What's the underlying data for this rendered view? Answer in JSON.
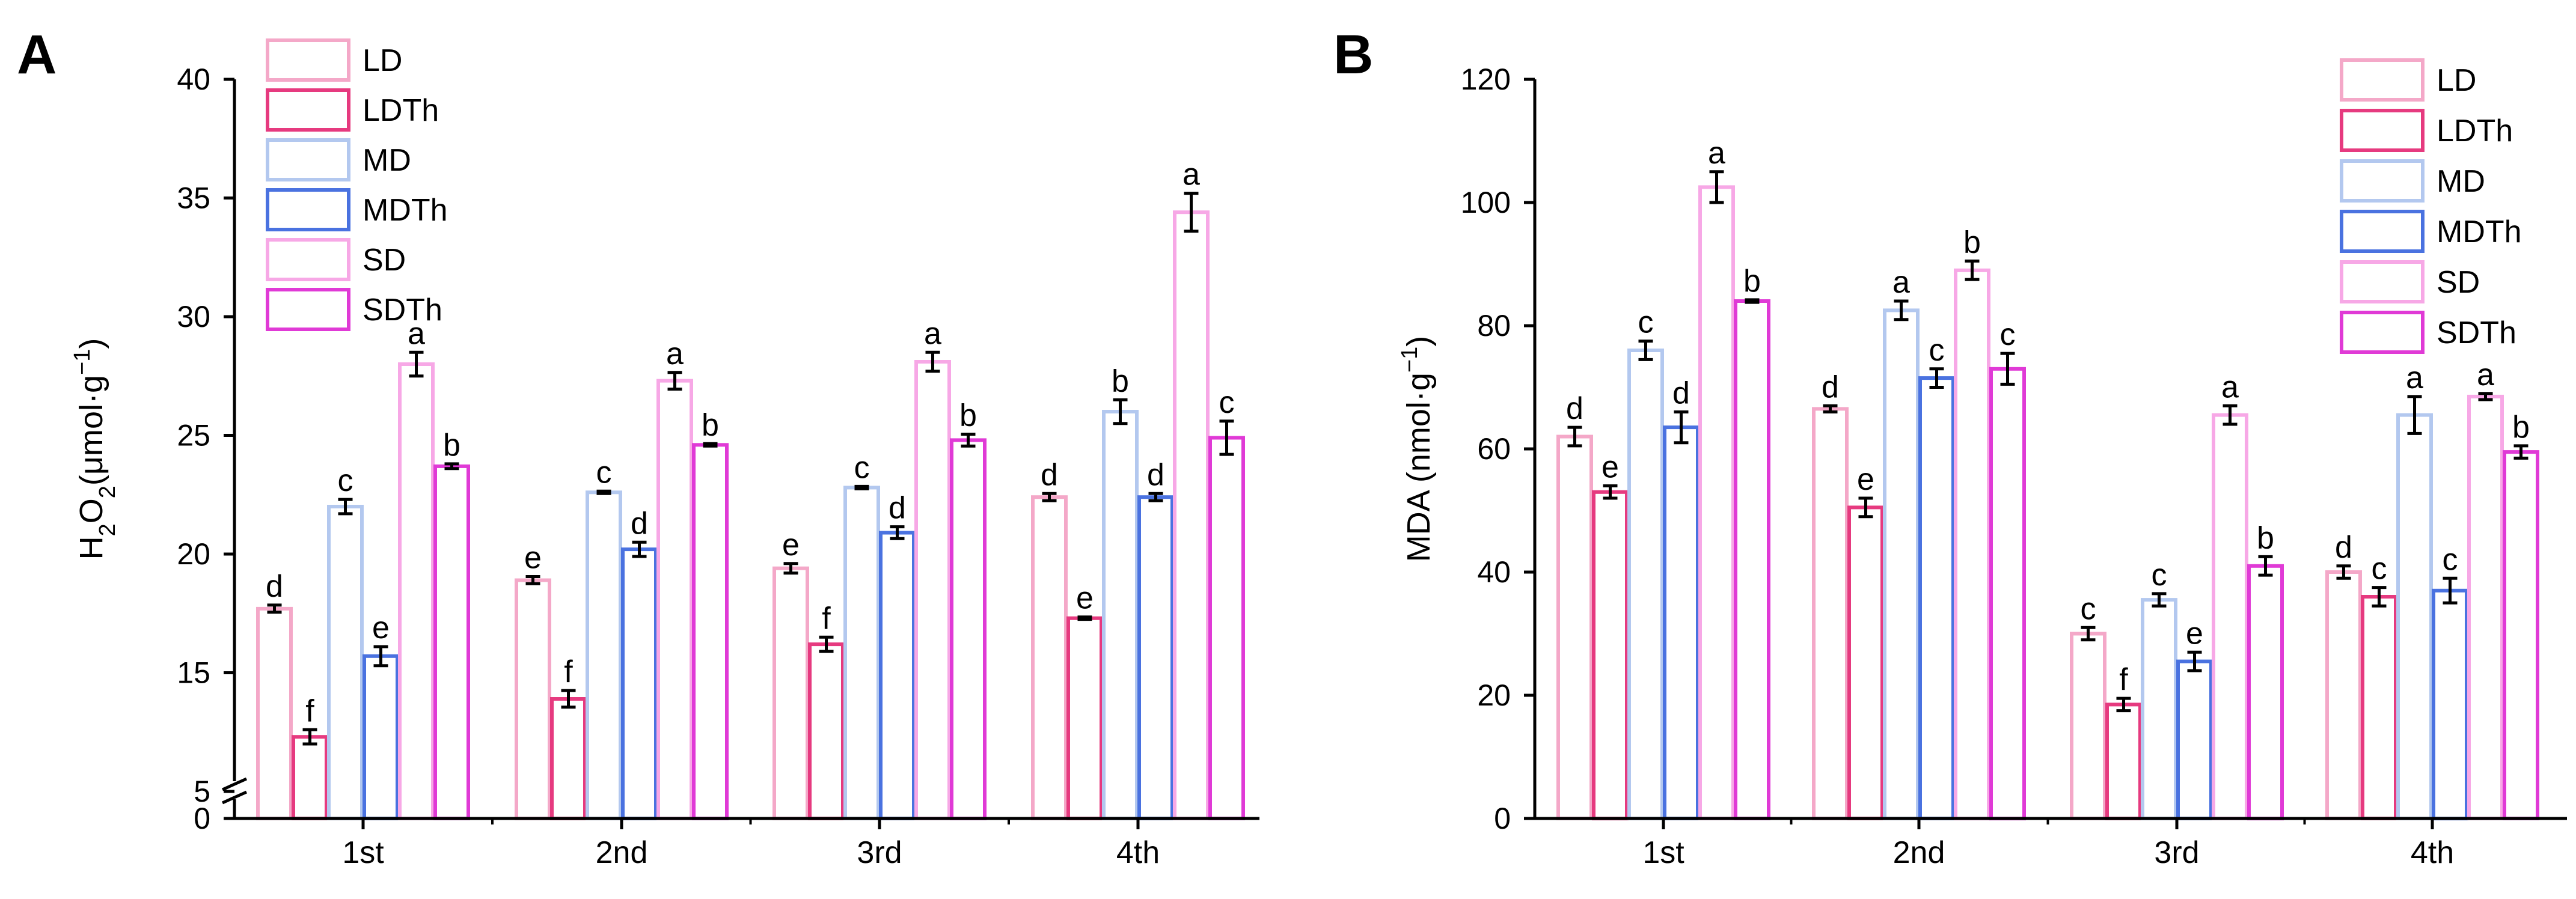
{
  "chart_data": [
    {
      "panel": "A",
      "type": "bar",
      "title": "",
      "xlabel": "",
      "ylabel": {
        "base": "H",
        "sub": "2",
        "mid": "O",
        "sub2": "2",
        "unit": "(μmol·g",
        "sup": "−1",
        "close": ")"
      },
      "categories": [
        "1st",
        "2nd",
        "3rd",
        "4th"
      ],
      "ylim": [
        0,
        40
      ],
      "axis_break": {
        "visible_below": [
          0,
          5
        ],
        "visible_above": [
          10,
          40
        ]
      },
      "yticks": [
        {
          "value": 0,
          "label": "0"
        },
        {
          "value": 5,
          "label": "5"
        },
        {
          "value": 15,
          "label": "15"
        },
        {
          "value": 20,
          "label": "20"
        },
        {
          "value": 25,
          "label": "25"
        },
        {
          "value": 30,
          "label": "30"
        },
        {
          "value": 35,
          "label": "35"
        },
        {
          "value": 40,
          "label": "40"
        }
      ],
      "legend_position": "top-left",
      "series": [
        {
          "name": "LD",
          "color": "#f4a8c8",
          "values": [
            17.7,
            18.9,
            19.4,
            22.4
          ],
          "errors": [
            0.15,
            0.15,
            0.2,
            0.15
          ],
          "letters": [
            "d",
            "e",
            "e",
            "d"
          ]
        },
        {
          "name": "LDTh",
          "color": "#e63a7f",
          "values": [
            12.3,
            13.9,
            16.2,
            17.3
          ],
          "errors": [
            0.3,
            0.35,
            0.3,
            0.05
          ],
          "letters": [
            "f",
            "f",
            "f",
            "e"
          ]
        },
        {
          "name": "MD",
          "color": "#b3c8ef",
          "values": [
            22.0,
            22.6,
            22.8,
            26.0
          ],
          "errors": [
            0.3,
            0.05,
            0.05,
            0.5
          ],
          "letters": [
            "c",
            "c",
            "c",
            "b"
          ]
        },
        {
          "name": "MDTh",
          "color": "#4a72e0",
          "values": [
            15.7,
            20.2,
            20.9,
            22.4
          ],
          "errors": [
            0.4,
            0.3,
            0.25,
            0.15
          ],
          "letters": [
            "e",
            "d",
            "d",
            "d"
          ]
        },
        {
          "name": "SD",
          "color": "#f7a8e6",
          "values": [
            28.0,
            27.3,
            28.1,
            34.4
          ],
          "errors": [
            0.5,
            0.35,
            0.4,
            0.8
          ],
          "letters": [
            "a",
            "a",
            "a",
            "a"
          ]
        },
        {
          "name": "SDTh",
          "color": "#e03ad6",
          "values": [
            23.7,
            24.6,
            24.8,
            24.9
          ],
          "errors": [
            0.1,
            0.05,
            0.25,
            0.7
          ],
          "letters": [
            "b",
            "b",
            "b",
            "c"
          ]
        }
      ]
    },
    {
      "panel": "B",
      "type": "bar",
      "title": "",
      "xlabel": "",
      "ylabel": {
        "base": "MDA (nmol·g",
        "sup": "−1",
        "close": ")"
      },
      "categories": [
        "1st",
        "2nd",
        "3rd",
        "4th"
      ],
      "ylim": [
        0,
        120
      ],
      "yticks": [
        {
          "value": 0,
          "label": "0"
        },
        {
          "value": 20,
          "label": "20"
        },
        {
          "value": 40,
          "label": "40"
        },
        {
          "value": 60,
          "label": "60"
        },
        {
          "value": 80,
          "label": "80"
        },
        {
          "value": 100,
          "label": "100"
        },
        {
          "value": 120,
          "label": "120"
        }
      ],
      "legend_position": "top-right",
      "series": [
        {
          "name": "LD",
          "color": "#f4a8c8",
          "values": [
            62,
            66.5,
            30,
            40
          ],
          "errors": [
            1.5,
            0.5,
            1,
            1
          ],
          "letters": [
            "d",
            "d",
            "c",
            "d"
          ]
        },
        {
          "name": "LDTh",
          "color": "#e63a7f",
          "values": [
            53,
            50.5,
            18.5,
            36
          ],
          "errors": [
            1,
            1.5,
            1,
            1.5
          ],
          "letters": [
            "e",
            "e",
            "f",
            "c"
          ]
        },
        {
          "name": "MD",
          "color": "#b3c8ef",
          "values": [
            76,
            82.5,
            35.5,
            65.5
          ],
          "errors": [
            1.5,
            1.5,
            1,
            3
          ],
          "letters": [
            "c",
            "a",
            "c",
            "a"
          ]
        },
        {
          "name": "MDTh",
          "color": "#4a72e0",
          "values": [
            63.5,
            71.5,
            25.5,
            37
          ],
          "errors": [
            2.5,
            1.5,
            1.5,
            2
          ],
          "letters": [
            "d",
            "c",
            "e",
            "c"
          ]
        },
        {
          "name": "SD",
          "color": "#f7a8e6",
          "values": [
            102.5,
            89,
            65.5,
            68.5
          ],
          "errors": [
            2.5,
            1.5,
            1.5,
            0.5
          ],
          "letters": [
            "a",
            "b",
            "a",
            "a"
          ]
        },
        {
          "name": "SDTh",
          "color": "#e03ad6",
          "values": [
            84,
            73,
            41,
            59.5
          ],
          "errors": [
            0.2,
            2.5,
            1.5,
            1
          ],
          "letters": [
            "b",
            "c",
            "b",
            "b"
          ]
        }
      ]
    }
  ]
}
